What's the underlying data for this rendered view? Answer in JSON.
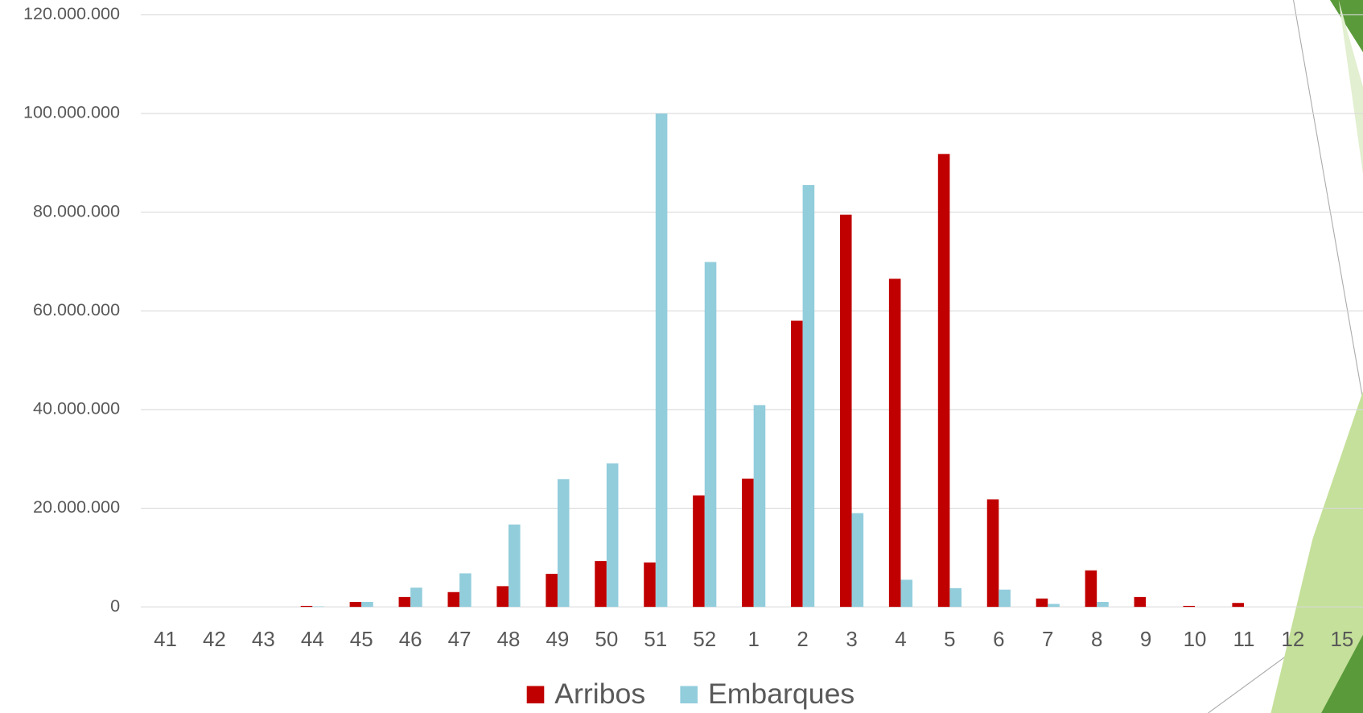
{
  "chart_data": {
    "type": "bar",
    "categories": [
      "41",
      "42",
      "43",
      "44",
      "45",
      "46",
      "47",
      "48",
      "49",
      "50",
      "51",
      "52",
      "1",
      "2",
      "3",
      "4",
      "5",
      "6",
      "7",
      "8",
      "9",
      "10",
      "11",
      "12",
      "15"
    ],
    "series": [
      {
        "name": "Arribos",
        "color": "#c00000",
        "values": [
          0,
          0,
          0,
          200000,
          1000000,
          2000000,
          3000000,
          4200000,
          6700000,
          9300000,
          9000000,
          22600000,
          26000000,
          58000000,
          79500000,
          66500000,
          91800000,
          21800000,
          1700000,
          7400000,
          2000000,
          200000,
          800000,
          0,
          0
        ]
      },
      {
        "name": "Embarques",
        "color": "#92cddc",
        "values": [
          0,
          0,
          0,
          100000,
          1000000,
          3900000,
          6800000,
          16700000,
          25900000,
          29100000,
          100000000,
          69900000,
          40900000,
          85500000,
          19000000,
          5500000,
          3800000,
          3500000,
          600000,
          1000000,
          0,
          0,
          0,
          0,
          0
        ]
      }
    ],
    "ylim": [
      0,
      120000000
    ],
    "yticks": [
      {
        "value": 0,
        "label": "0"
      },
      {
        "value": 20000000,
        "label": "20.000.000"
      },
      {
        "value": 40000000,
        "label": "40.000.000"
      },
      {
        "value": 60000000,
        "label": "60.000.000"
      },
      {
        "value": 80000000,
        "label": "80.000.000"
      },
      {
        "value": 100000000,
        "label": "100.000.000"
      },
      {
        "value": 120000000,
        "label": "120.000.000"
      }
    ],
    "grid": true,
    "legend": "bottom"
  }
}
